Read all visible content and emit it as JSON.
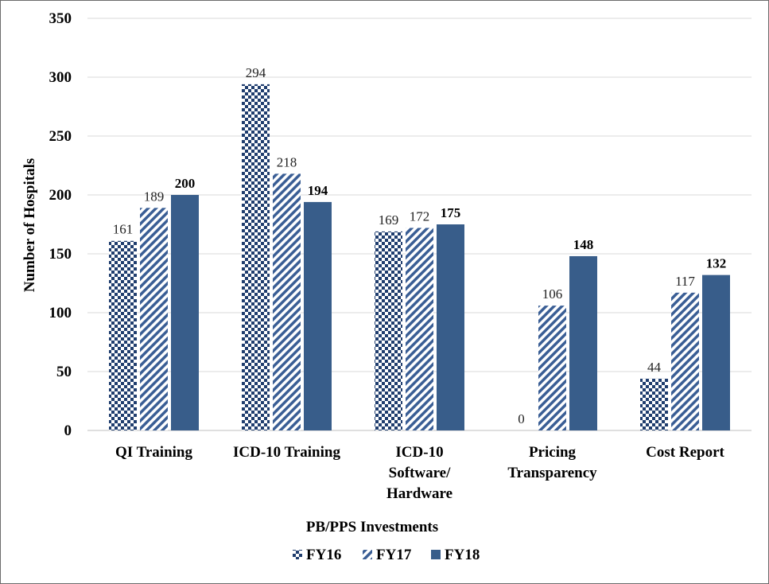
{
  "chart_data": {
    "type": "bar",
    "categories": [
      [
        "QI Training"
      ],
      [
        "ICD-10 Training"
      ],
      [
        "ICD-10",
        "Software/",
        "Hardware"
      ],
      [
        "Pricing",
        "Transparency"
      ],
      [
        "Cost Report"
      ]
    ],
    "series": [
      {
        "name": "FY16",
        "values": [
          161,
          294,
          169,
          0,
          44
        ],
        "pattern": "checker",
        "color": "#1f3d6e",
        "label_bold": false
      },
      {
        "name": "FY17",
        "values": [
          189,
          218,
          172,
          106,
          117
        ],
        "pattern": "diagonal",
        "color": "#3a5e95",
        "label_bold": false
      },
      {
        "name": "FY18",
        "values": [
          200,
          194,
          175,
          148,
          132
        ],
        "pattern": "solid",
        "color": "#385d8a",
        "label_bold": true
      }
    ],
    "xlabel": "PB/PPS Investments",
    "ylabel": "Number of Hospitals",
    "ylim": [
      0,
      350
    ],
    "yticks": [
      0,
      50,
      100,
      150,
      200,
      250,
      300,
      350
    ],
    "grid": true,
    "legend_position": "bottom"
  }
}
